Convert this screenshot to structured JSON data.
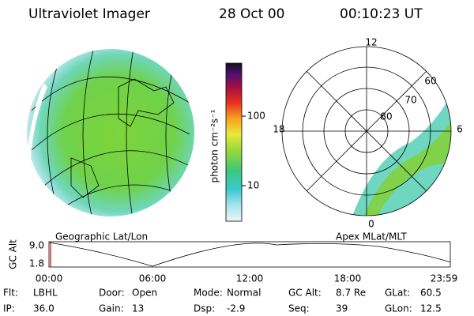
{
  "header": {
    "title": "Ultraviolet Imager",
    "date": "28 Oct 00",
    "time": "00:10:23 UT"
  },
  "left_panel": {
    "label": "Geographic Lat/Lon"
  },
  "colorbar": {
    "label": "photon cm⁻²s⁻¹",
    "ticks": [
      "100",
      "10"
    ]
  },
  "right_panel": {
    "label": "Apex MLat/MLT",
    "mlt_labels": [
      "12",
      "18",
      "6",
      "0"
    ],
    "lat_labels": [
      "60",
      "70",
      "80"
    ]
  },
  "altitude_plot": {
    "ylabel": "GC Alt",
    "yticks": [
      "9.0",
      "1.8"
    ],
    "xticks": [
      "00:00",
      "06:00",
      "12:00",
      "18:00",
      "23:59"
    ]
  },
  "status": [
    [
      {
        "label": "Flt:",
        "value": "LBHL"
      },
      {
        "label": "Door:",
        "value": "Open"
      },
      {
        "label": "Mode:",
        "value": "Normal"
      },
      {
        "label": "GC Alt:",
        "value": "8.7 Re"
      },
      {
        "label": "GLat:",
        "value": "60.5"
      }
    ],
    [
      {
        "label": "IP:",
        "value": "36.0"
      },
      {
        "label": "Gain:",
        "value": "13"
      },
      {
        "label": "Dsp:",
        "value": "-2.9"
      },
      {
        "label": "Seq:",
        "value": "39"
      },
      {
        "label": "GLon:",
        "value": "12.5"
      }
    ]
  ]
}
